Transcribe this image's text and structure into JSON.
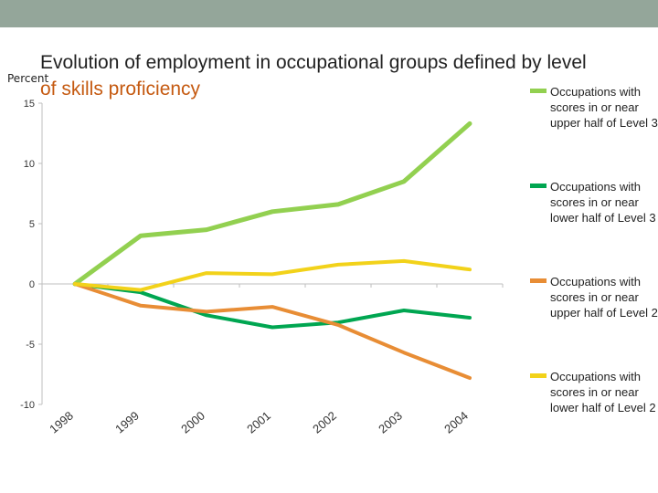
{
  "colors": {
    "top_bar": "#94a69a",
    "upper_l3": "#92d050",
    "lower_l3": "#00a651",
    "upper_l2": "#e88d35",
    "lower_l2": "#f2d21a",
    "axis": "#bfbfbf"
  },
  "chart_data": {
    "type": "line",
    "title_line1": "Evolution of employment in occupational groups defined by level",
    "title_line2": "of skills proficiency",
    "ylabel": "Percent",
    "xlabel": "",
    "ylim": [
      -10,
      15
    ],
    "yticks": [
      "15",
      "10",
      "5",
      "0",
      "-5",
      "-10"
    ],
    "ytick_values": [
      15,
      10,
      5,
      0,
      -5,
      -10
    ],
    "categories": [
      "1998",
      "1999",
      "2000",
      "2001",
      "2002",
      "2003",
      "2004"
    ],
    "grid": false,
    "legend_position": "right",
    "series": [
      {
        "name": "Occupations with scores in or near upper half of Level 3",
        "color_key": "upper_l3",
        "values": [
          0,
          4.0,
          4.5,
          6.0,
          6.6,
          8.5,
          13.3
        ]
      },
      {
        "name": "Occupations with scores in or near lower half of Level 3",
        "color_key": "lower_l3",
        "values": [
          0,
          -0.7,
          -2.6,
          -3.6,
          -3.2,
          -2.2,
          -2.8
        ]
      },
      {
        "name": "Occupations with scores in or near upper half of Level 2",
        "color_key": "upper_l2",
        "values": [
          0,
          -1.8,
          -2.3,
          -1.9,
          -3.4,
          -5.7,
          -7.8
        ]
      },
      {
        "name": "Occupations with scores in or near lower half of Level 2",
        "color_key": "lower_l2",
        "values": [
          0,
          -0.5,
          0.9,
          0.8,
          1.6,
          1.9,
          1.2
        ]
      }
    ]
  },
  "legend": {
    "items": [
      {
        "label": "Occupations with scores in or near upper half of Level 3",
        "color_key": "upper_l3"
      },
      {
        "label": "Occupations with scores in or near lower half of Level 3",
        "color_key": "lower_l3"
      },
      {
        "label": "Occupations with scores in or near upper half of Level 2",
        "color_key": "upper_l2"
      },
      {
        "label": "Occupations with scores in or near lower half of Level 2",
        "color_key": "lower_l2"
      }
    ]
  }
}
